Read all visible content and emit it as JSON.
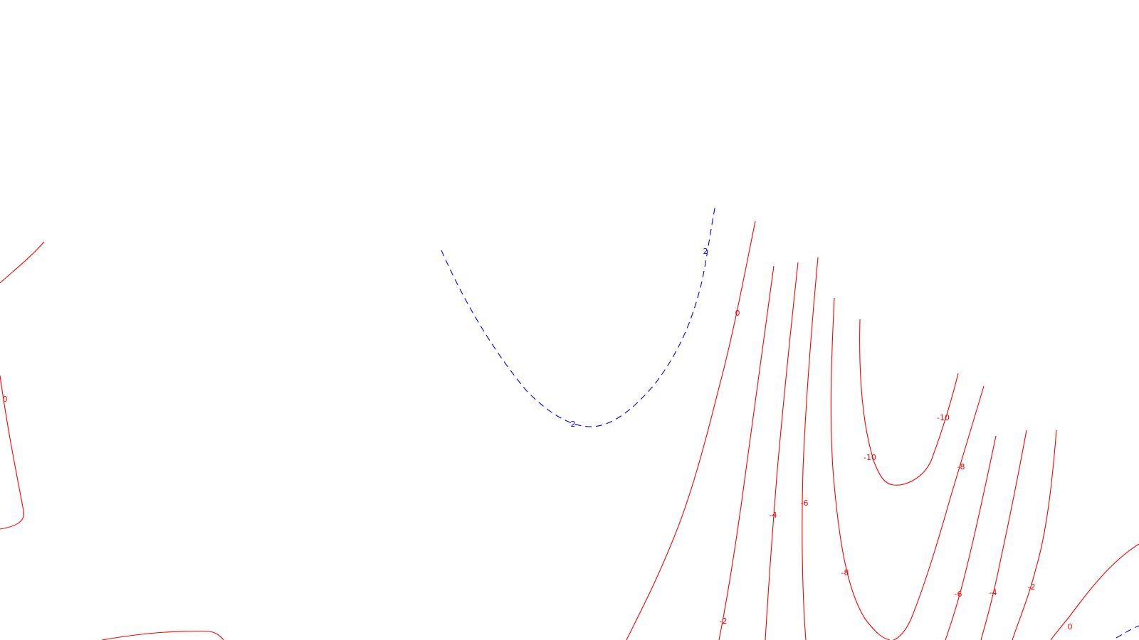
{
  "chart_data": {
    "type": "contour",
    "title": "",
    "xlabel": "",
    "ylabel": "",
    "grid": false,
    "legend": "none",
    "colors": {
      "positive": "#0000ff",
      "zero_and_negative": "#ff0000"
    },
    "levels": [
      {
        "value": 2,
        "label": "2",
        "color": "#0000ff",
        "dash": true
      },
      {
        "value": 0,
        "label": "0",
        "color": "#ff0000",
        "dash": false
      },
      {
        "value": -2,
        "label": "-2",
        "color": "#ff0000",
        "dash": false
      },
      {
        "value": -4,
        "label": "-4",
        "color": "#ff0000",
        "dash": false
      },
      {
        "value": -6,
        "label": "-6",
        "color": "#ff0000",
        "dash": false
      },
      {
        "value": -8,
        "label": "-8",
        "color": "#ff0000",
        "dash": false
      },
      {
        "value": -10,
        "label": "-10",
        "color": "#ff0000",
        "dash": false
      }
    ]
  }
}
